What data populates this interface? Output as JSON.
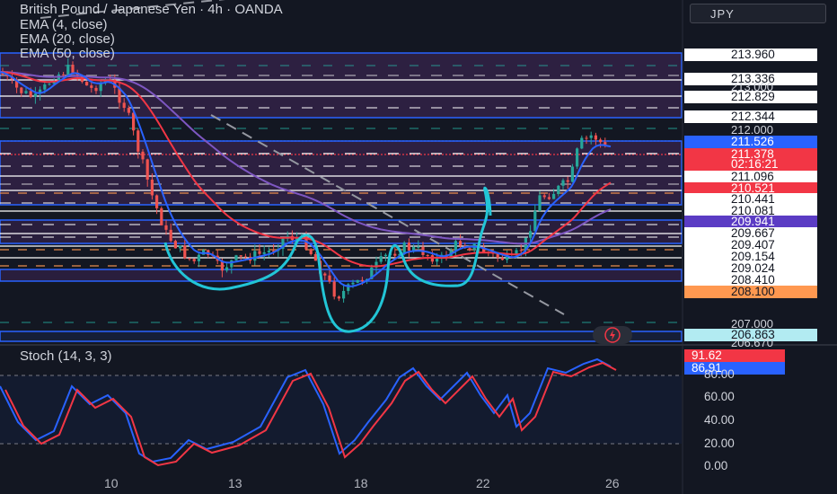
{
  "legend": {
    "title": "British Pound / Japanese Yen · 4h · OANDA",
    "ema4": "EMA (4, close)",
    "ema20": "EMA (20, close)",
    "ema50": "EMA (50, close)"
  },
  "currency_button": "JPY",
  "price_axis": {
    "tags": [
      {
        "text": "213.960",
        "bg": "#ffffff",
        "fg": "#131722"
      },
      {
        "text": "213.336",
        "bg": "#ffffff",
        "fg": "#131722"
      },
      {
        "text": "212.829",
        "bg": "#ffffff",
        "fg": "#131722"
      },
      {
        "text": "212.344",
        "bg": "#ffffff",
        "fg": "#131722"
      },
      {
        "text": "211.526",
        "bg": "#2962ff",
        "fg": "#ffffff"
      },
      {
        "text": "211.378",
        "bg": "#f23645",
        "fg": "#ffffff"
      },
      {
        "text": "02:16:21",
        "bg": "#f23645",
        "fg": "#ffffff"
      },
      {
        "text": "211.096",
        "bg": "#ffffff",
        "fg": "#131722"
      },
      {
        "text": "210.521",
        "bg": "#f23645",
        "fg": "#ffffff"
      },
      {
        "text": "210.441",
        "bg": "#ffffff",
        "fg": "#131722"
      },
      {
        "text": "210.081",
        "bg": "#ffffff",
        "fg": "#131722"
      },
      {
        "text": "209.941",
        "bg": "#5b3cc4",
        "fg": "#ffffff"
      },
      {
        "text": "209.667",
        "bg": "#ffffff",
        "fg": "#131722"
      },
      {
        "text": "209.407",
        "bg": "#ffffff",
        "fg": "#131722"
      },
      {
        "text": "209.154",
        "bg": "#ffffff",
        "fg": "#131722"
      },
      {
        "text": "209.024",
        "bg": "#ffffff",
        "fg": "#131722"
      },
      {
        "text": "208.410",
        "bg": "#ffffff",
        "fg": "#131722"
      },
      {
        "text": "208.100",
        "bg": "#ff9850",
        "fg": "#131722"
      },
      {
        "text": "206.863",
        "bg": "#b2ebf2",
        "fg": "#131722"
      }
    ],
    "partial_labels": [
      "213.000",
      "212.000",
      "207.000",
      "206.670"
    ]
  },
  "time_axis": [
    "10",
    "13",
    "18",
    "22",
    "26"
  ],
  "stoch": {
    "label": "Stoch (14, 3, 3)",
    "k_value": "91.62",
    "d_value": "86.91",
    "k_color": "#f23645",
    "d_color": "#2962ff",
    "axis": [
      "80.00",
      "60.00",
      "40.00",
      "20.00",
      "0.00"
    ]
  },
  "icons": {
    "bolt": "lightning-icon"
  },
  "colors": {
    "up": "#26a69a",
    "down": "#ef5350",
    "zone": "#2962ff",
    "zone_fill": "rgba(122,58,160,0.22)",
    "ema4": "#2962ff",
    "ema20": "#f23645",
    "ema50": "#7e57c2",
    "pattern": "#22c5d6"
  }
}
